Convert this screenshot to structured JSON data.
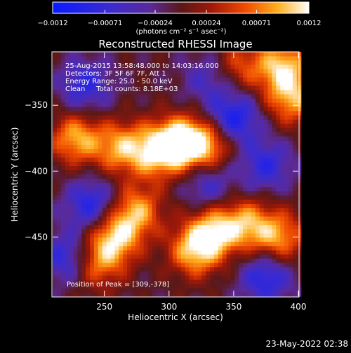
{
  "chart_data": {
    "type": "heatmap",
    "title": "Reconstructed RHESSI Image",
    "xlabel": "Heliocentric X (arcsec)",
    "ylabel": "Heliocentric Y (arcsec)",
    "xlim": [
      210,
      400
    ],
    "ylim": [
      -495,
      -310
    ],
    "x_ticks": [
      250,
      300,
      350,
      400
    ],
    "y_ticks": [
      -350,
      -400,
      -450
    ],
    "colorbar": {
      "ticks": [
        -0.0012,
        -0.00071,
        -0.00024,
        0.00024,
        0.00071,
        0.0012
      ],
      "tick_labels": [
        "−0.0012",
        "−0.00071",
        "−0.00024",
        "0.00024",
        "0.00071",
        "0.0012"
      ],
      "range": [
        -0.0012,
        0.0012
      ],
      "unit_label": "(photons cm⁻² s⁻¹ asec⁻²)"
    },
    "annotations": [
      "25-Aug-2015 13:58:48.000 to 14:03:16.000",
      "Detectors: 3F 5F 6F 7F, Att 1",
      "Energy Range: 25.0 - 50.0 keV",
      "Clean     Total counts: 8.18E+03"
    ],
    "peak_label": "Position of Peak = [309,-378]",
    "peak": [
      309,
      -378
    ],
    "bright_regions": [
      {
        "x": 309,
        "y": -378,
        "level": 1.0
      },
      {
        "x": 290,
        "y": -385,
        "level": 0.85
      },
      {
        "x": 330,
        "y": -380,
        "level": 0.8
      },
      {
        "x": 262,
        "y": -382,
        "level": 0.75
      },
      {
        "x": 228,
        "y": -375,
        "level": 0.8
      },
      {
        "x": 258,
        "y": -450,
        "level": 0.85
      },
      {
        "x": 275,
        "y": -430,
        "level": 0.75
      },
      {
        "x": 245,
        "y": -470,
        "level": 0.6
      },
      {
        "x": 320,
        "y": -460,
        "level": 0.85
      },
      {
        "x": 335,
        "y": -445,
        "level": 0.8
      },
      {
        "x": 385,
        "y": -450,
        "level": 0.75
      },
      {
        "x": 360,
        "y": -440,
        "level": 0.7
      },
      {
        "x": 388,
        "y": -320,
        "level": 0.85
      },
      {
        "x": 395,
        "y": -345,
        "level": 0.75
      },
      {
        "x": 355,
        "y": -320,
        "level": 0.5
      }
    ],
    "dim_regions": [
      {
        "x": 235,
        "y": -335,
        "level": -0.6
      },
      {
        "x": 240,
        "y": -425,
        "level": -0.7
      },
      {
        "x": 350,
        "y": -360,
        "level": -0.8
      },
      {
        "x": 330,
        "y": -410,
        "level": -0.5
      },
      {
        "x": 375,
        "y": -395,
        "level": -0.6
      },
      {
        "x": 220,
        "y": -465,
        "level": -0.6
      },
      {
        "x": 330,
        "y": -330,
        "level": -0.4
      },
      {
        "x": 375,
        "y": -480,
        "level": -0.7
      }
    ]
  },
  "footer": {
    "timestamp": "23-May-2022 02:38"
  }
}
